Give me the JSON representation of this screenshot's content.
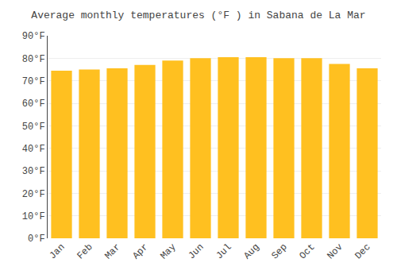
{
  "chart_data": {
    "type": "bar",
    "title": "Average monthly temperatures (°F ) in Sabana de La Mar",
    "categories": [
      "Jan",
      "Feb",
      "Mar",
      "Apr",
      "May",
      "Jun",
      "Jul",
      "Aug",
      "Sep",
      "Oct",
      "Nov",
      "Dec"
    ],
    "values": [
      74.5,
      75.0,
      75.5,
      77.0,
      79.0,
      80.0,
      80.5,
      80.5,
      80.0,
      80.0,
      77.5,
      75.5
    ],
    "color": "#FFC020",
    "ylim": [
      0,
      90
    ],
    "yticks": [
      {
        "value": 0,
        "label": "0°F"
      },
      {
        "value": 10,
        "label": "10°F"
      },
      {
        "value": 20,
        "label": "20°F"
      },
      {
        "value": 30,
        "label": "30°F"
      },
      {
        "value": 40,
        "label": "40°F"
      },
      {
        "value": 50,
        "label": "50°F"
      },
      {
        "value": 60,
        "label": "60°F"
      },
      {
        "value": 70,
        "label": "70°F"
      },
      {
        "value": 80,
        "label": "80°F"
      },
      {
        "value": 90,
        "label": "90°F"
      }
    ],
    "grid": true
  }
}
